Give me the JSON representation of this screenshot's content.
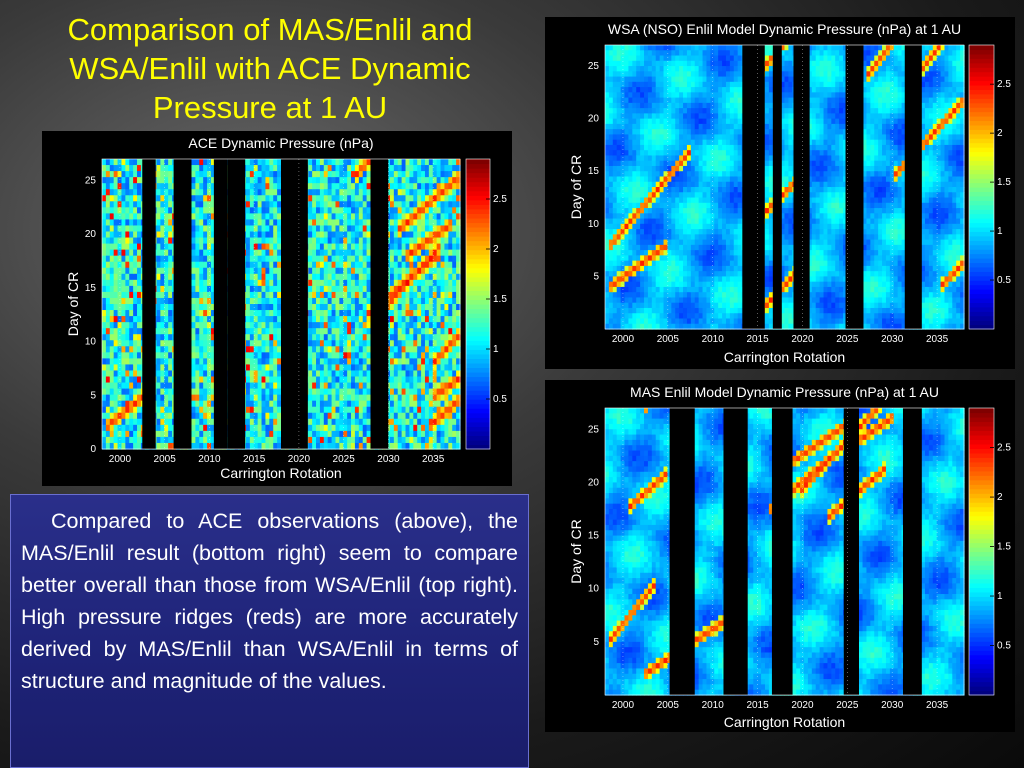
{
  "slide": {
    "title": "Comparison of MAS/Enlil and WSA/Enlil with ACE Dynamic Pressure at 1 AU",
    "caption": "Compared to ACE observations (above), the MAS/Enlil result (bottom right) seem to compare better overall than those from WSA/Enlil (top right). High pressure ridges (reds) are more accurately derived by MAS/Enlil than WSA/Enlil in terms of structure and magnitude of the values."
  },
  "chart_data": [
    {
      "id": "ace",
      "type": "heatmap",
      "title": "ACE Dynamic Pressure (nPa)",
      "xlabel": "Carrington Rotation",
      "ylabel": "Day of CR",
      "xlim": [
        1998,
        2038
      ],
      "ylim": [
        0,
        27
      ],
      "xticks": [
        "2000",
        "2005",
        "2010",
        "2015",
        "2020",
        "2025",
        "2030",
        "2035"
      ],
      "yticks": [
        "0",
        "5",
        "10",
        "15",
        "20",
        "25"
      ],
      "colorbar": {
        "range": [
          0,
          2.9
        ],
        "ticks": [
          "0.5",
          "1",
          "1.5",
          "2",
          "2.5"
        ]
      },
      "gaps": [
        [
          2002.5,
          2004
        ],
        [
          2006,
          2008
        ],
        [
          2010.5,
          2012
        ],
        [
          2012,
          2014
        ],
        [
          2018,
          2021
        ],
        [
          2028,
          2030
        ]
      ]
    },
    {
      "id": "wsa",
      "type": "heatmap",
      "title": "WSA (NSO) Enlil Model Dynamic Pressure (nPa) at 1 AU",
      "xlabel": "Carrington Rotation",
      "ylabel": "Day of CR",
      "xlim": [
        1998,
        2038
      ],
      "ylim": [
        0,
        27
      ],
      "xticks": [
        "2000",
        "2005",
        "2010",
        "2015",
        "2020",
        "2025",
        "2030",
        "2035"
      ],
      "yticks": [
        "5",
        "10",
        "15",
        "20",
        "25"
      ],
      "colorbar": {
        "range": [
          0,
          2.9
        ],
        "ticks": [
          "0.5",
          "1",
          "1.5",
          "2",
          "2.5"
        ]
      },
      "gaps": [
        [
          2013.3,
          2015.8
        ],
        [
          2016.7,
          2017.7
        ],
        [
          2019,
          2020.8
        ],
        [
          2024.8,
          2026.8
        ],
        [
          2031.4,
          2033.3
        ]
      ]
    },
    {
      "id": "mas",
      "type": "heatmap",
      "title": "MAS Enlil Model Dynamic Pressure (nPa) at 1 AU",
      "xlabel": "Carrington Rotation",
      "ylabel": "Day of CR",
      "xlim": [
        1998,
        2038
      ],
      "ylim": [
        0,
        27
      ],
      "xticks": [
        "2000",
        "2005",
        "2010",
        "2015",
        "2020",
        "2025",
        "2030",
        "2035"
      ],
      "yticks": [
        "5",
        "10",
        "15",
        "20",
        "25"
      ],
      "colorbar": {
        "range": [
          0,
          2.9
        ],
        "ticks": [
          "0.5",
          "1",
          "1.5",
          "2",
          "2.5"
        ]
      },
      "gaps": [
        [
          2005.2,
          2008
        ],
        [
          2011.2,
          2013.9
        ],
        [
          2016.6,
          2018.9
        ],
        [
          2024.6,
          2026.3
        ],
        [
          2031.2,
          2033.3
        ]
      ]
    }
  ]
}
